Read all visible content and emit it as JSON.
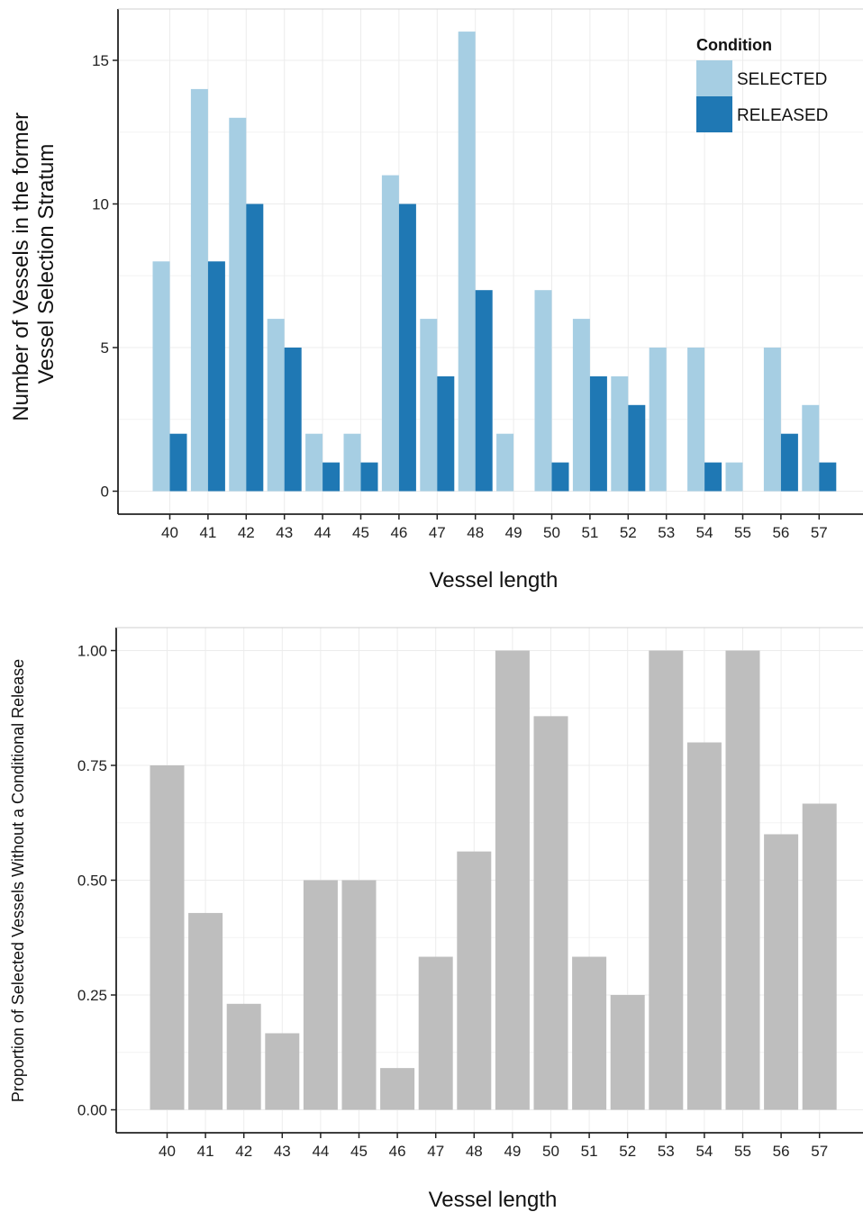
{
  "colors": {
    "selected": "#a6cee3",
    "released": "#1f78b4",
    "proportion": "#bebebe",
    "grid": "#ececec",
    "axis": "#222222"
  },
  "chart_data": [
    {
      "type": "bar",
      "categories": [
        "40",
        "41",
        "42",
        "43",
        "44",
        "45",
        "46",
        "47",
        "48",
        "49",
        "50",
        "51",
        "52",
        "53",
        "54",
        "55",
        "56",
        "57"
      ],
      "series": [
        {
          "name": "SELECTED",
          "values": [
            8,
            14,
            13,
            6,
            2,
            2,
            11,
            6,
            16,
            2,
            7,
            6,
            4,
            5,
            5,
            1,
            5,
            3
          ]
        },
        {
          "name": "RELEASED",
          "values": [
            2,
            8,
            10,
            5,
            1,
            1,
            10,
            4,
            7,
            0,
            1,
            4,
            3,
            0,
            1,
            0,
            2,
            1
          ]
        }
      ],
      "xlabel": "Vessel length",
      "ylabel_lines": [
        "Number of Vessels in the former",
        "Vessel Selection Stratum"
      ],
      "ylim": [
        0,
        16.8
      ],
      "yticks": [
        0,
        5,
        10,
        15
      ],
      "ytick_labels": [
        "0",
        "5",
        "10",
        "15"
      ],
      "legend": {
        "title": "Condition",
        "placement": "top-right",
        "entries": [
          "SELECTED",
          "RELEASED"
        ]
      },
      "grid": true
    },
    {
      "type": "bar",
      "categories": [
        "40",
        "41",
        "42",
        "43",
        "44",
        "45",
        "46",
        "47",
        "48",
        "49",
        "50",
        "51",
        "52",
        "53",
        "54",
        "55",
        "56",
        "57"
      ],
      "values": [
        0.75,
        0.4286,
        0.2308,
        0.1667,
        0.5,
        0.5,
        0.0909,
        0.3333,
        0.5625,
        1.0,
        0.8571,
        0.3333,
        0.25,
        1.0,
        0.8,
        1.0,
        0.6,
        0.6667
      ],
      "xlabel": "Vessel length",
      "ylabel": "Proportion of Selected Vessels Without a Conditional Release",
      "ylim": [
        0,
        1.05
      ],
      "yticks": [
        0,
        0.25,
        0.5,
        0.75,
        1.0
      ],
      "ytick_labels": [
        "0.00",
        "0.25",
        "0.50",
        "0.75",
        "1.00"
      ],
      "grid": true
    }
  ]
}
